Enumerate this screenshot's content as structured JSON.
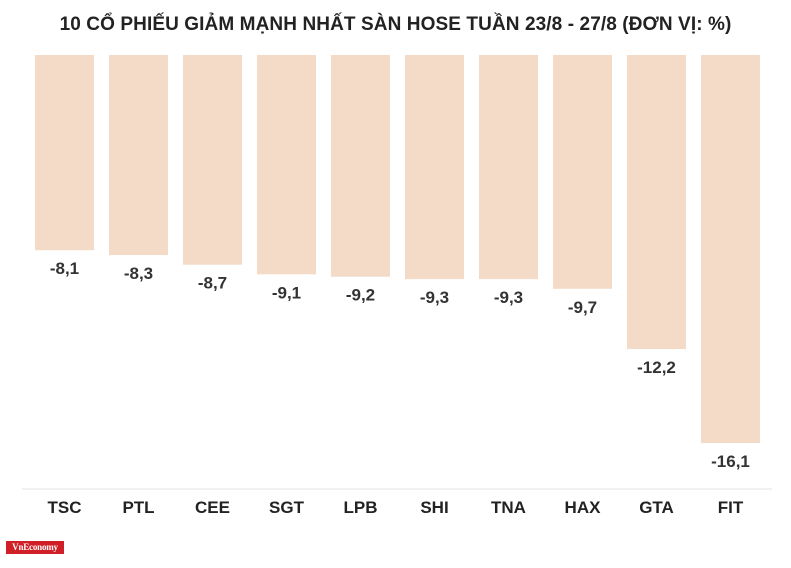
{
  "chart_data": {
    "type": "bar",
    "title": "10 CỔ PHIẾU GIẢM MẠNH NHẤT SÀN HOSE TUẦN 23/8 - 27/8 (ĐƠN VỊ: %)",
    "xlabel": "",
    "ylabel": "",
    "categories": [
      "TSC",
      "PTL",
      "CEE",
      "SGT",
      "LPB",
      "SHI",
      "TNA",
      "HAX",
      "GTA",
      "FIT"
    ],
    "values": [
      -8.1,
      -8.3,
      -8.7,
      -9.1,
      -9.2,
      -9.3,
      -9.3,
      -9.7,
      -12.2,
      -16.1
    ],
    "value_labels": [
      "-8,1",
      "-8,3",
      "-8,7",
      "-9,1",
      "-9,2",
      "-9,3",
      "-9,3",
      "-9,7",
      "-12,2",
      "-16,1"
    ],
    "ylim": [
      -20,
      0
    ],
    "grid": false,
    "legend": "none",
    "bar_color": "#f3dbc7",
    "label_color": "#333333",
    "axis_color": "#e3e3e3"
  },
  "branding": {
    "logo_text": "VnEconomy",
    "logo_color": "#d01f26"
  }
}
